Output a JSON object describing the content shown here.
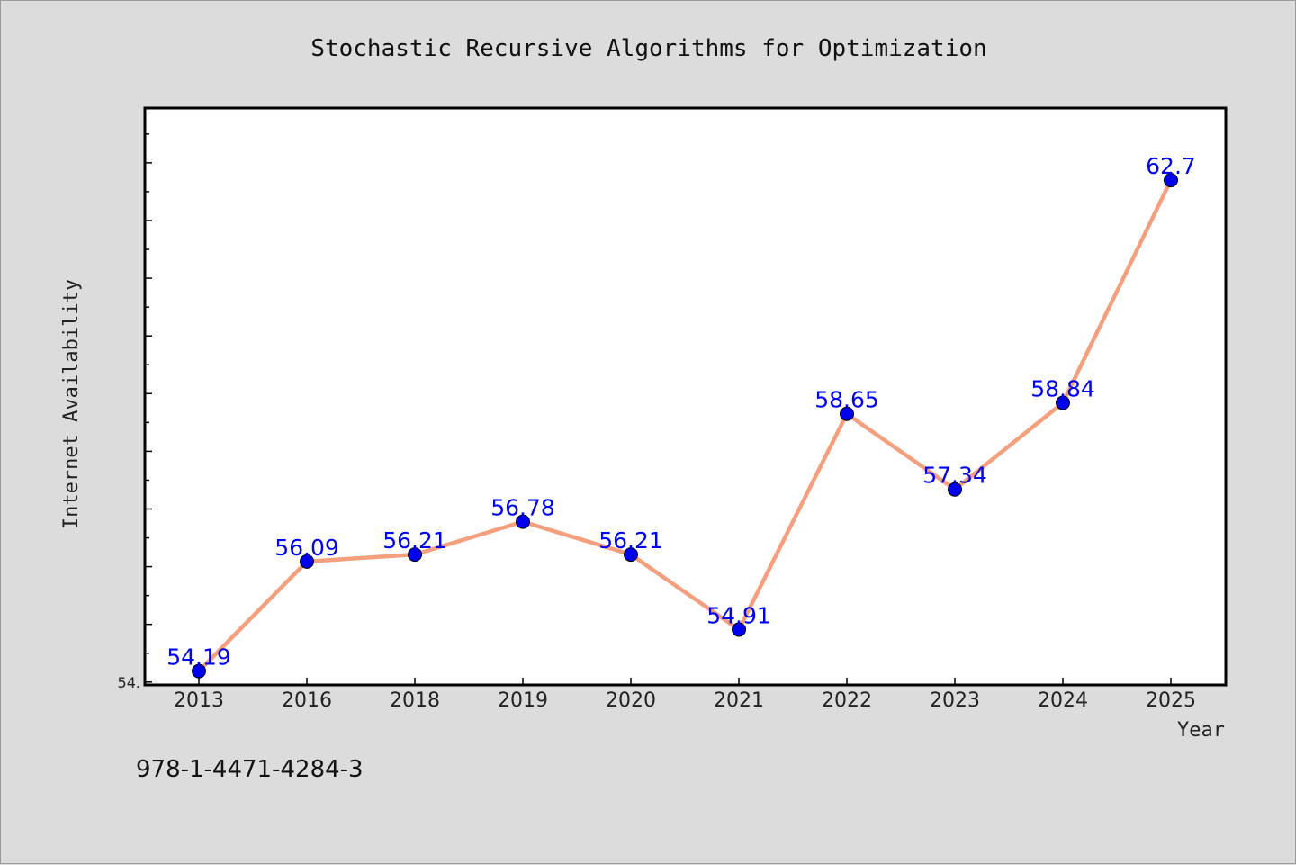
{
  "chart_data": {
    "type": "line",
    "title": "Stochastic Recursive Algorithms for Optimization",
    "xlabel": "Year",
    "ylabel": "Internet Availability",
    "categories": [
      "2013",
      "2016",
      "2018",
      "2019",
      "2020",
      "2021",
      "2022",
      "2023",
      "2024",
      "2025"
    ],
    "series": [
      {
        "values": [
          54.19,
          56.09,
          56.21,
          56.78,
          56.21,
          54.91,
          58.65,
          57.34,
          58.84,
          62.7
        ]
      }
    ],
    "data_labels": [
      "54.19",
      "56.09",
      "56.21",
      "56.78",
      "56.21",
      "54.91",
      "58.65",
      "57.34",
      "58.84",
      "62.7"
    ],
    "ylim": [
      53.95,
      63.95
    ],
    "y_tick_label": "54.",
    "grid": false,
    "legend": "none"
  },
  "footer": {
    "isbn": "978-1-4471-4284-3"
  },
  "colors": {
    "background": "#dcdcdc",
    "plot_background": "#ffffff",
    "line": "#f4a07e",
    "marker": "#0000ee",
    "data_label": "#0000ee"
  }
}
